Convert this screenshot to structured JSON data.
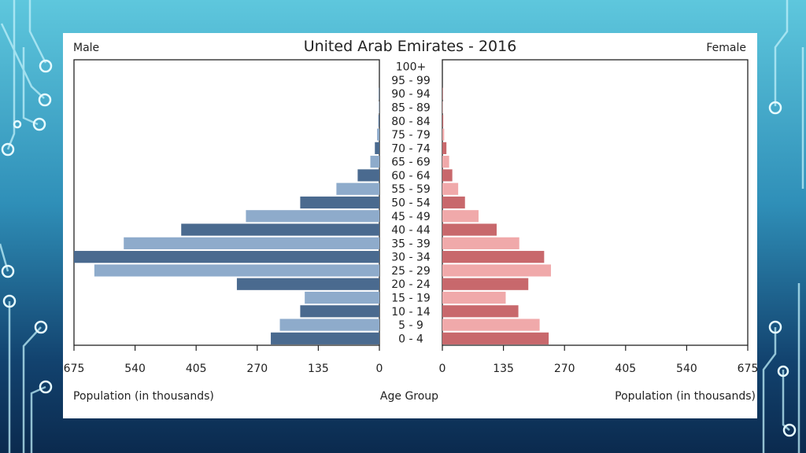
{
  "colors": {
    "male_dark": "#4a6a8f",
    "male_light": "#8eabcb",
    "female_dark": "#c8686c",
    "female_light": "#f0a9aa",
    "axis": "#222222"
  },
  "chart_data": {
    "type": "bar",
    "orientation": "horizontal-pyramid",
    "title": "United Arab Emirates - 2016",
    "left_label": "Male",
    "right_label": "Female",
    "xlabel_left": "Population (in thousands)",
    "xlabel_center": "Age Group",
    "xlabel_right": "Population (in thousands)",
    "xlim": [
      0,
      675
    ],
    "xticks": [
      675,
      540,
      405,
      270,
      135,
      0
    ],
    "xticks_right": [
      0,
      135,
      270,
      405,
      540,
      675
    ],
    "categories": [
      "100+",
      "95 - 99",
      "90 - 94",
      "85 - 89",
      "80 - 84",
      "75 - 79",
      "70 - 74",
      "65 - 69",
      "60 - 64",
      "55 - 59",
      "50 - 54",
      "45 - 49",
      "40 - 44",
      "35 - 39",
      "30 - 34",
      "25 - 29",
      "20 - 24",
      "15 - 19",
      "10 - 14",
      "5 - 9",
      "0 - 4"
    ],
    "series": [
      {
        "name": "Male",
        "values": [
          0,
          0,
          1,
          1,
          2,
          5,
          10,
          20,
          48,
          95,
          175,
          295,
          438,
          565,
          675,
          630,
          315,
          165,
          175,
          220,
          240
        ]
      },
      {
        "name": "Female",
        "values": [
          0,
          0,
          1,
          1,
          2,
          4,
          9,
          15,
          22,
          35,
          50,
          80,
          120,
          170,
          225,
          240,
          190,
          140,
          168,
          215,
          235
        ]
      }
    ]
  }
}
